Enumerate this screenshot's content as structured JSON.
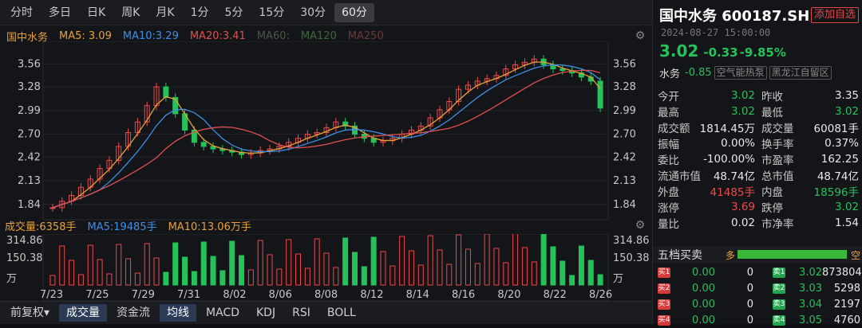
{
  "tabs": [
    "分时",
    "多日",
    "日K",
    "周K",
    "月K",
    "1分",
    "5分",
    "15分",
    "30分",
    "60分"
  ],
  "active_tab": "60分",
  "ma": {
    "name": "国中水务",
    "ma5": "MA5: 3.09",
    "ma10": "MA10:3.29",
    "ma20": "MA20:3.41",
    "ma60": "MA60:",
    "ma120": "MA120",
    "ma250": "MA250"
  },
  "vol_line": {
    "vol": "成交量:6358手",
    "ma5": "MA5:19485手",
    "ma10": "MA10:13.06万手"
  },
  "bottom_tabs": [
    "前复权▾",
    "成交量",
    "资金流",
    "均线",
    "MACD",
    "KDJ",
    "RSI",
    "BOLL"
  ],
  "colors": {
    "up": "#f04848",
    "down": "#25c25a",
    "ma5": "#e7a23a",
    "ma10": "#3d8fe6",
    "ma20": "#e05050"
  },
  "stock": {
    "name": "国中水务",
    "code": "600187.SH",
    "add_label": "添加自选",
    "time": "2024-08-27 15:00:00",
    "price": "3.02",
    "change": "-0.33",
    "pct": "-9.85%",
    "sector_label": "水务",
    "sector_change": "-0.85",
    "tag1": "空气能热泵",
    "tag2": "黑龙江自留区"
  },
  "stats": [
    {
      "l1": "今开",
      "v1": "3.02",
      "cl1": "g",
      "l2": "昨收",
      "v2": "3.35",
      "cl2": "w"
    },
    {
      "l1": "最高",
      "v1": "3.02",
      "cl1": "g",
      "l2": "最低",
      "v2": "3.02",
      "cl2": "g"
    },
    {
      "l1": "成交额",
      "v1": "1814.45万",
      "cl1": "w",
      "l2": "成交量",
      "v2": "60081手",
      "cl2": "w"
    },
    {
      "l1": "振幅",
      "v1": "0.00%",
      "cl1": "w",
      "l2": "换手率",
      "v2": "0.37%",
      "cl2": "w"
    },
    {
      "l1": "委比",
      "v1": "-100.00%",
      "cl1": "w",
      "l2": "市盈率",
      "v2": "162.25",
      "cl2": "w"
    },
    {
      "l1": "流通市值",
      "v1": "48.74亿",
      "cl1": "w",
      "l2": "总市值",
      "v2": "48.74亿",
      "cl2": "w"
    },
    {
      "l1": "外盘",
      "v1": "41485手",
      "cl1": "r",
      "l2": "内盘",
      "v2": "18596手",
      "cl2": "g"
    },
    {
      "l1": "涨停",
      "v1": "3.69",
      "cl1": "r",
      "l2": "跌停",
      "v2": "3.02",
      "cl2": "g"
    },
    {
      "l1": "量比",
      "v1": "0.02",
      "cl1": "w",
      "l2": "市净率",
      "v2": "1.54",
      "cl2": "w"
    }
  ],
  "wudang": {
    "title": "五档买卖",
    "left": "多",
    "right": "空"
  },
  "book": [
    {
      "bl": "买1",
      "bp": "0.00",
      "bv": "0",
      "sl": "卖1",
      "sp": "3.02",
      "sv": "873804"
    },
    {
      "bl": "买2",
      "bp": "0.00",
      "bv": "0",
      "sl": "卖2",
      "sp": "3.03",
      "sv": "5298"
    },
    {
      "bl": "买3",
      "bp": "0.00",
      "bv": "0",
      "sl": "卖3",
      "sp": "3.04",
      "sv": "2197"
    },
    {
      "bl": "买4",
      "bp": "0.00",
      "bv": "0",
      "sl": "卖4",
      "sp": "3.05",
      "sv": "4760"
    }
  ],
  "chart_data": {
    "type": "candlestick",
    "price_ticks": [
      "3.56",
      "3.28",
      "2.99",
      "2.70",
      "2.42",
      "2.13",
      "1.84"
    ],
    "vol_ticks": [
      "314.86",
      "150.38",
      "万"
    ],
    "x_dates": [
      "7/23",
      "7/25",
      "7/29",
      "7/31",
      "8/02",
      "8/06",
      "8/08",
      "8/12",
      "8/14",
      "8/16",
      "8/20",
      "8/22",
      "8/26"
    ],
    "ylim": [
      1.75,
      3.7
    ]
  }
}
